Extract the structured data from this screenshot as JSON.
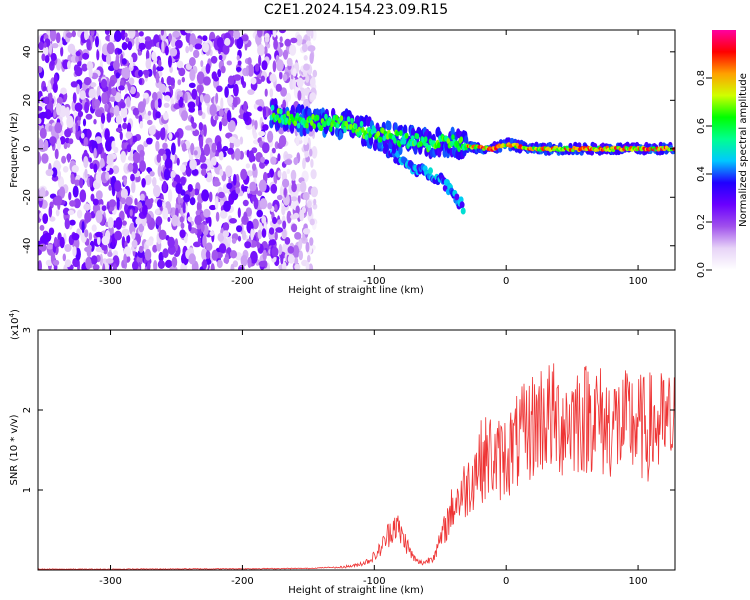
{
  "title": "C2E1.2024.154.23.09.R15",
  "chart_data": [
    {
      "type": "heatmap",
      "xlabel": "Height of straight line (km)",
      "ylabel": "Frequency (Hz)",
      "xlim": [
        -355,
        128
      ],
      "ylim": [
        -50,
        49
      ],
      "x_ticks": [
        -300,
        -200,
        -100,
        0,
        100
      ],
      "y_ticks": [
        -40,
        -20,
        0,
        20,
        40
      ],
      "grid": false,
      "colorbar": {
        "label": "Normalized spectral amplitude",
        "range": [
          0,
          1
        ],
        "ticks": [
          0.0,
          0.2,
          0.4,
          0.6,
          0.8
        ],
        "colormap": [
          "#ffffff",
          "#e7d3f7",
          "#a050ec",
          "#6a00ff",
          "#2000ff",
          "#00c8ff",
          "#00ff90",
          "#00ff00",
          "#d0ff00",
          "#ffa000",
          "#ff0000",
          "#ff00a0"
        ]
      },
      "features": [
        {
          "name": "noise region",
          "x_range": [
            -355,
            -145
          ],
          "freq_range": [
            -50,
            49
          ],
          "amplitude": [
            0.05,
            0.3
          ]
        },
        {
          "name": "meteor trail",
          "points": [
            [
              -178,
              15
            ],
            [
              -160,
              12
            ],
            [
              -140,
              11
            ],
            [
              -120,
              10
            ],
            [
              -100,
              6
            ],
            [
              -80,
              4
            ],
            [
              -60,
              2
            ],
            [
              -40,
              3
            ],
            [
              -30,
              1
            ],
            [
              -10,
              0
            ],
            [
              0,
              2
            ],
            [
              20,
              0
            ],
            [
              60,
              0
            ],
            [
              100,
              0
            ],
            [
              128,
              0
            ]
          ],
          "amplitude": [
            0.5,
            1.0
          ]
        },
        {
          "name": "lower branch",
          "points": [
            [
              -95,
              2
            ],
            [
              -80,
              -5
            ],
            [
              -70,
              -8
            ],
            [
              -60,
              -10
            ],
            [
              -50,
              -12
            ],
            [
              -40,
              -18
            ],
            [
              -32,
              -25
            ]
          ],
          "amplitude": [
            0.3,
            0.5
          ]
        }
      ]
    },
    {
      "type": "line",
      "xlabel": "Height of straight line (km)",
      "ylabel": "SNR (10 * v/v)",
      "y_scale_label": "(x10",
      "y_scale_exp": "4",
      "y_scale_close": ")",
      "xlim": [
        -355,
        128
      ],
      "ylim": [
        0,
        3
      ],
      "x_ticks": [
        -300,
        -200,
        -100,
        0,
        100
      ],
      "y_ticks": [
        1,
        2,
        3
      ],
      "color": "#ee3333",
      "series": [
        {
          "x": [
            -355,
            -300,
            -250,
            -200,
            -150,
            -130,
            -115,
            -105,
            -98,
            -92,
            -88,
            -84,
            -80,
            -76,
            -72,
            -68,
            -64,
            -60,
            -56,
            -52,
            -48,
            -44,
            -40,
            -36,
            -32,
            -28,
            -24,
            -20,
            -16,
            -12,
            -8,
            -4,
            0,
            5,
            10,
            15,
            20,
            25,
            30,
            35,
            40,
            45,
            50,
            55,
            60,
            65,
            70,
            75,
            80,
            85,
            90,
            95,
            100,
            105,
            110,
            115,
            120,
            128
          ],
          "y": [
            0.005,
            0.005,
            0.008,
            0.01,
            0.015,
            0.03,
            0.06,
            0.12,
            0.22,
            0.4,
            0.55,
            0.65,
            0.5,
            0.38,
            0.22,
            0.12,
            0.1,
            0.12,
            0.18,
            0.3,
            0.5,
            0.7,
            0.9,
            1.0,
            1.1,
            1.2,
            1.4,
            1.5,
            1.55,
            1.6,
            1.5,
            1.55,
            1.6,
            1.7,
            1.8,
            1.9,
            2.0,
            2.1,
            2.15,
            2.1,
            2.05,
            2.05,
            2.1,
            2.15,
            2.1,
            2.2,
            2.1,
            2.0,
            2.05,
            2.0,
            2.0,
            2.05,
            2.0,
            1.95,
            2.0,
            2.0,
            2.0,
            2.0
          ]
        }
      ]
    }
  ]
}
